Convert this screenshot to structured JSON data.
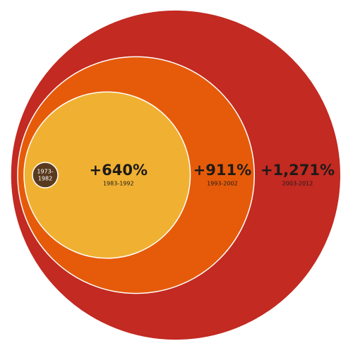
{
  "chart_data": {
    "type": "nested-circle",
    "categories": [
      "1983-1992",
      "1993-2002",
      "2003-2012"
    ],
    "values": [
      640,
      911,
      1271
    ],
    "value_labels": [
      "+640%",
      "+911%",
      "+1,271%"
    ],
    "colors": [
      "#f0b132",
      "#e65b0a",
      "#c22a22"
    ],
    "base_label": [
      "1973-",
      "1982"
    ],
    "base_color": "#5a3a1e"
  }
}
